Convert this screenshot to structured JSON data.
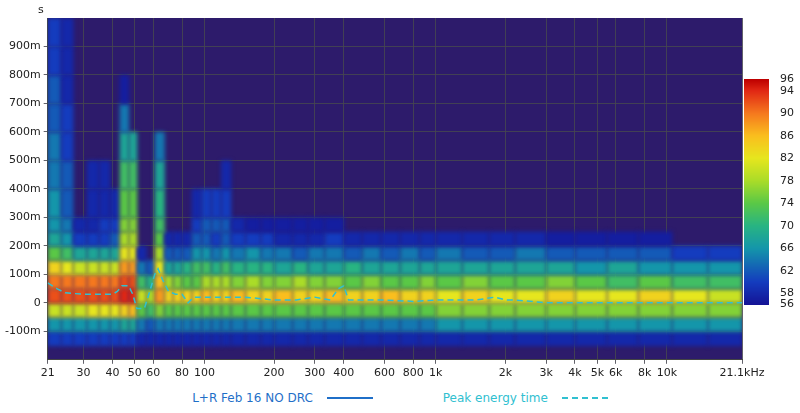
{
  "chart_data": {
    "type": "heatmap",
    "y_label": "s",
    "log": "x",
    "grid": true,
    "legend": "bottom",
    "xlim": [
      21,
      21100
    ],
    "xticks": [
      21,
      30,
      40,
      50,
      60,
      80,
      100,
      200,
      300,
      400,
      600,
      800,
      {
        "value": 1000,
        "label": "1k"
      },
      {
        "value": 2000,
        "label": "2k"
      },
      {
        "value": 3000,
        "label": "3k"
      },
      {
        "value": 4000,
        "label": "4k"
      },
      {
        "value": 5000,
        "label": "5k"
      },
      {
        "value": 6000,
        "label": "6k"
      },
      {
        "value": 8000,
        "label": "8k"
      },
      {
        "value": 10000,
        "label": "10k"
      },
      {
        "value": 21100,
        "label": "21.1kHz"
      }
    ],
    "ylim": [
      -0.2,
      1.0
    ],
    "yticks": [
      {
        "value": -0.1,
        "label": "-100m"
      },
      0,
      {
        "value": 0.1,
        "label": "100m"
      },
      {
        "value": 0.2,
        "label": "200m"
      },
      {
        "value": 0.3,
        "label": "300m"
      },
      {
        "value": 0.4,
        "label": "400m"
      },
      {
        "value": 0.5,
        "label": "500m"
      },
      {
        "value": 0.6,
        "label": "600m"
      },
      {
        "value": 0.7,
        "label": "700m"
      },
      {
        "value": 0.8,
        "label": "800m"
      },
      {
        "value": 0.9,
        "label": "900m"
      }
    ],
    "color_range": [
      56,
      96
    ],
    "color_ticks": [
      56,
      58,
      62,
      66,
      70,
      74,
      78,
      82,
      86,
      90,
      94,
      96
    ],
    "x_bins": [
      21,
      24,
      27,
      31,
      35,
      39,
      43,
      47,
      51,
      56,
      61,
      67,
      73,
      80,
      88,
      97,
      107,
      118,
      130,
      150,
      175,
      200,
      240,
      280,
      330,
      400,
      480,
      580,
      700,
      850,
      1000,
      1300,
      1700,
      2200,
      3000,
      4000,
      5500,
      7500,
      10500,
      15000,
      21100
    ],
    "y_bins": [
      -0.2,
      -0.15,
      -0.1,
      -0.05,
      0,
      0.05,
      0.1,
      0.15,
      0.2,
      0.25,
      0.3,
      0.4,
      0.5,
      0.6,
      0.7,
      0.8,
      0.9,
      1.0
    ],
    "series": [
      {
        "name": "L+R Feb 16 NO DRC",
        "type": "heatmap",
        "color": "#1f6fc8",
        "line_style": "solid",
        "cells": [
          [
            null,
            null,
            null,
            null,
            null,
            null,
            null,
            null,
            null,
            null,
            null,
            null,
            null,
            null,
            null,
            null,
            null,
            null,
            null,
            null,
            null,
            null,
            null,
            null,
            null,
            null,
            null,
            null,
            null,
            null,
            null,
            null,
            null,
            null,
            null,
            null,
            null,
            null,
            null,
            null
          ],
          [
            60,
            60,
            60,
            60,
            60,
            60,
            60,
            60,
            58,
            58,
            58,
            58,
            58,
            58,
            58,
            58,
            58,
            58,
            58,
            58,
            58,
            58,
            58,
            58,
            58,
            58,
            58,
            58,
            58,
            58,
            58,
            58,
            58,
            58,
            58,
            58,
            58,
            58,
            58,
            58
          ],
          [
            66,
            66,
            66,
            66,
            66,
            66,
            68,
            68,
            64,
            62,
            64,
            64,
            64,
            64,
            64,
            64,
            64,
            64,
            64,
            64,
            64,
            64,
            64,
            64,
            64,
            64,
            64,
            64,
            64,
            64,
            66,
            66,
            66,
            66,
            66,
            66,
            66,
            66,
            66,
            66
          ],
          [
            80,
            80,
            80,
            82,
            82,
            82,
            84,
            86,
            74,
            72,
            76,
            74,
            74,
            74,
            74,
            74,
            74,
            74,
            74,
            74,
            74,
            74,
            74,
            74,
            74,
            74,
            74,
            74,
            74,
            74,
            76,
            76,
            76,
            76,
            76,
            76,
            76,
            76,
            76,
            76
          ],
          [
            92,
            92,
            92,
            92,
            92,
            92,
            94,
            94,
            80,
            78,
            88,
            84,
            84,
            84,
            84,
            86,
            84,
            84,
            86,
            84,
            84,
            86,
            84,
            84,
            86,
            84,
            84,
            86,
            84,
            84,
            82,
            84,
            82,
            82,
            84,
            82,
            82,
            84,
            82,
            80
          ],
          [
            90,
            90,
            90,
            90,
            90,
            90,
            92,
            92,
            72,
            70,
            86,
            78,
            76,
            74,
            74,
            78,
            78,
            78,
            76,
            78,
            76,
            76,
            78,
            76,
            76,
            74,
            76,
            74,
            74,
            76,
            74,
            76,
            74,
            74,
            76,
            74,
            72,
            74,
            72,
            72
          ],
          [
            84,
            82,
            80,
            80,
            80,
            80,
            88,
            88,
            64,
            62,
            82,
            68,
            68,
            70,
            72,
            72,
            70,
            72,
            70,
            70,
            70,
            68,
            70,
            68,
            68,
            70,
            68,
            68,
            68,
            68,
            68,
            68,
            68,
            68,
            68,
            66,
            68,
            66,
            66,
            66
          ],
          [
            74,
            72,
            68,
            68,
            68,
            68,
            82,
            82,
            58,
            null,
            78,
            62,
            62,
            62,
            66,
            66,
            64,
            66,
            64,
            66,
            64,
            64,
            62,
            64,
            64,
            62,
            64,
            62,
            64,
            62,
            64,
            62,
            62,
            64,
            62,
            62,
            62,
            62,
            60,
            60
          ],
          [
            68,
            66,
            60,
            60,
            60,
            62,
            78,
            78,
            null,
            null,
            74,
            58,
            58,
            58,
            62,
            62,
            60,
            62,
            60,
            60,
            60,
            58,
            58,
            58,
            60,
            58,
            58,
            58,
            58,
            58,
            58,
            58,
            58,
            58,
            57,
            57,
            57,
            57,
            null,
            null
          ],
          [
            66,
            64,
            58,
            58,
            60,
            60,
            76,
            76,
            null,
            null,
            72,
            null,
            null,
            null,
            60,
            62,
            62,
            62,
            58,
            57,
            57,
            57,
            57,
            57,
            57,
            null,
            null,
            null,
            null,
            null,
            null,
            null,
            null,
            null,
            null,
            null,
            null,
            null,
            null,
            null
          ],
          [
            66,
            62,
            null,
            58,
            58,
            58,
            74,
            74,
            null,
            null,
            70,
            null,
            null,
            null,
            58,
            60,
            60,
            60,
            null,
            null,
            null,
            null,
            null,
            null,
            null,
            null,
            null,
            null,
            null,
            null,
            null,
            null,
            null,
            null,
            null,
            null,
            null,
            null,
            null,
            null
          ],
          [
            64,
            62,
            null,
            58,
            58,
            null,
            72,
            72,
            null,
            null,
            68,
            null,
            null,
            null,
            null,
            null,
            null,
            58,
            null,
            null,
            null,
            null,
            null,
            null,
            null,
            null,
            null,
            null,
            null,
            null,
            null,
            null,
            null,
            null,
            null,
            null,
            null,
            null,
            null,
            null
          ],
          [
            64,
            60,
            null,
            null,
            null,
            null,
            68,
            68,
            null,
            null,
            64,
            null,
            null,
            null,
            null,
            null,
            null,
            null,
            null,
            null,
            null,
            null,
            null,
            null,
            null,
            null,
            null,
            null,
            null,
            null,
            null,
            null,
            null,
            null,
            null,
            null,
            null,
            null,
            null,
            null
          ],
          [
            62,
            60,
            null,
            null,
            null,
            null,
            64,
            null,
            null,
            null,
            null,
            null,
            null,
            null,
            null,
            null,
            null,
            null,
            null,
            null,
            null,
            null,
            null,
            null,
            null,
            null,
            null,
            null,
            null,
            null,
            null,
            null,
            null,
            null,
            null,
            null,
            null,
            null,
            null,
            null
          ],
          [
            62,
            58,
            null,
            null,
            null,
            null,
            57,
            null,
            null,
            null,
            null,
            null,
            null,
            null,
            null,
            null,
            null,
            null,
            null,
            null,
            null,
            null,
            null,
            null,
            null,
            null,
            null,
            null,
            null,
            null,
            null,
            null,
            null,
            null,
            null,
            null,
            null,
            null,
            null,
            null
          ],
          [
            60,
            58,
            null,
            null,
            null,
            null,
            null,
            null,
            null,
            null,
            null,
            null,
            null,
            null,
            null,
            null,
            null,
            null,
            null,
            null,
            null,
            null,
            null,
            null,
            null,
            null,
            null,
            null,
            null,
            null,
            null,
            null,
            null,
            null,
            null,
            null,
            null,
            null,
            null,
            null
          ],
          [
            60,
            58,
            null,
            null,
            null,
            null,
            null,
            null,
            null,
            null,
            null,
            null,
            null,
            null,
            null,
            null,
            null,
            null,
            null,
            null,
            null,
            null,
            null,
            null,
            null,
            null,
            null,
            null,
            null,
            null,
            null,
            null,
            null,
            null,
            null,
            null,
            null,
            null,
            null,
            null
          ]
        ]
      },
      {
        "name": "Peak energy time",
        "type": "line",
        "color": "#30c0d0",
        "line_style": "dashed",
        "x": [
          21,
          23,
          25,
          30,
          35,
          40,
          42,
          44,
          47,
          49,
          51,
          55,
          58,
          61,
          63,
          66,
          70,
          75,
          80,
          85,
          90,
          100,
          120,
          150,
          200,
          250,
          300,
          350,
          380,
          400,
          420,
          500,
          600,
          800,
          1000,
          1500,
          1800,
          2000,
          2200,
          3000,
          5000,
          10000,
          21100
        ],
        "values": [
          0.07,
          0.05,
          0.035,
          0.03,
          0.03,
          0.03,
          0.04,
          0.06,
          0.06,
          0.03,
          -0.02,
          -0.02,
          0.04,
          0.1,
          0.12,
          0.08,
          0.04,
          0.03,
          0.03,
          0.0,
          0.02,
          0.02,
          0.02,
          0.02,
          0.01,
          0.01,
          0.02,
          0.01,
          0.05,
          0.06,
          0.01,
          0.01,
          0.01,
          0.005,
          0.01,
          0.01,
          0.02,
          0.01,
          0.01,
          0.0,
          0.0,
          0.0,
          0.0
        ]
      }
    ]
  }
}
